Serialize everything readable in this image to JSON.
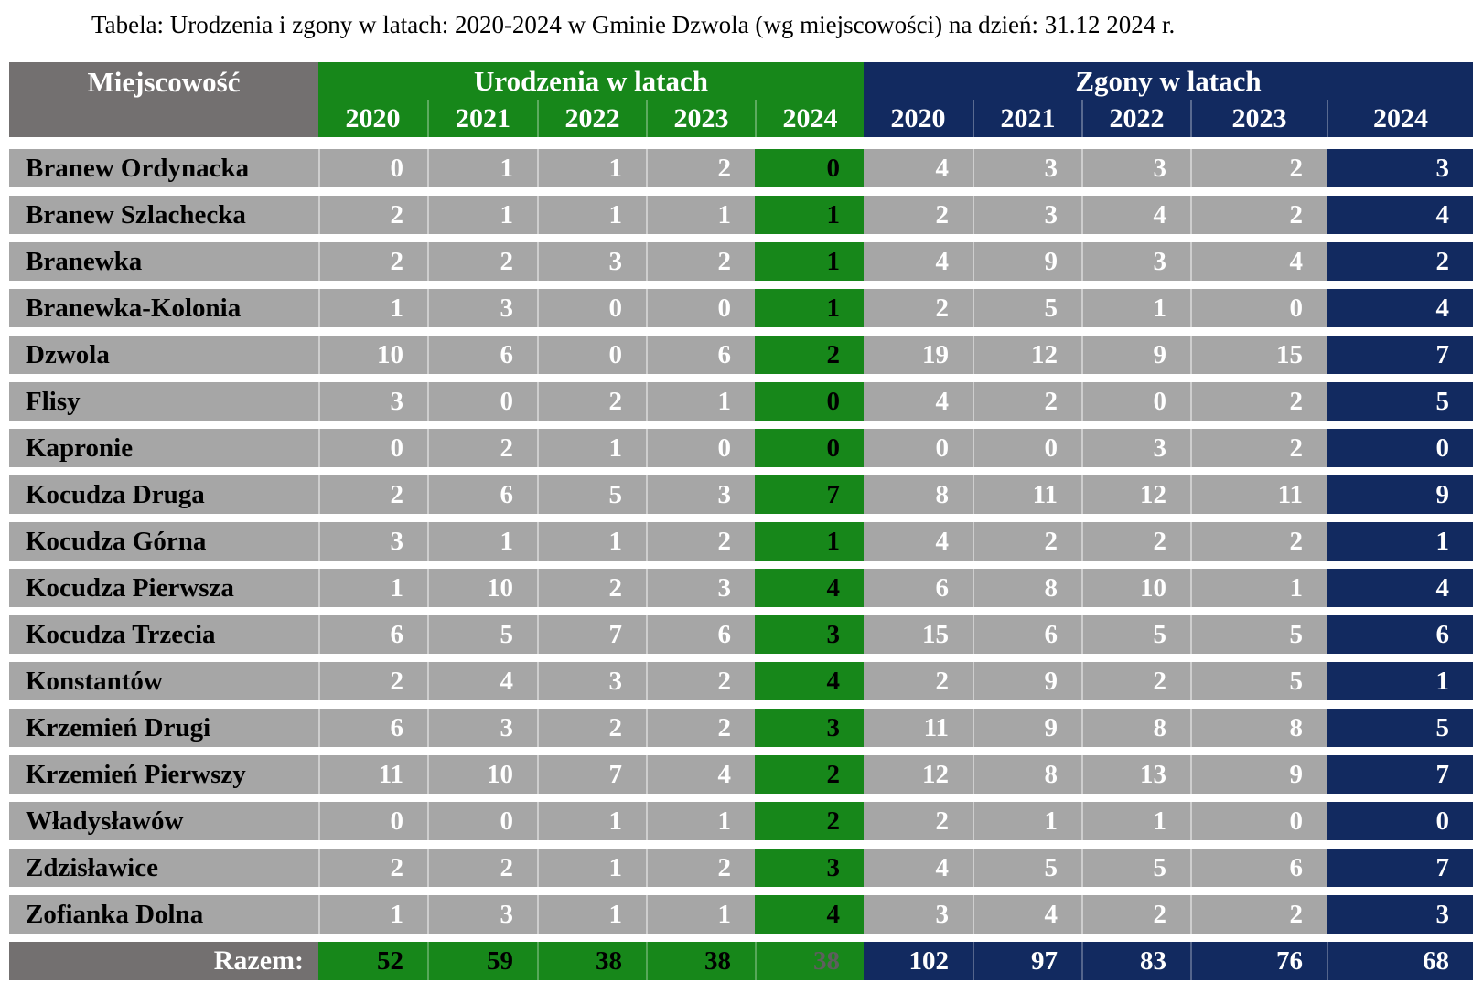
{
  "title": "Tabela: Urodzenia i zgony w latach: 2020-2024 w Gminie Dzwola (wg miejscowości) na dzień: 31.12 2024 r.",
  "header": {
    "locality": "Miejscowość",
    "births_group": "Urodzenia w latach",
    "deaths_group": "Zgony w latach",
    "years": [
      "2020",
      "2021",
      "2022",
      "2023",
      "2024"
    ]
  },
  "rows": [
    {
      "name": "Branew Ordynacka",
      "births": [
        0,
        1,
        1,
        2,
        0
      ],
      "deaths": [
        4,
        3,
        3,
        2,
        3
      ]
    },
    {
      "name": "Branew Szlachecka",
      "births": [
        2,
        1,
        1,
        1,
        1
      ],
      "deaths": [
        2,
        3,
        4,
        2,
        4
      ]
    },
    {
      "name": "Branewka",
      "births": [
        2,
        2,
        3,
        2,
        1
      ],
      "deaths": [
        4,
        9,
        3,
        4,
        2
      ]
    },
    {
      "name": "Branewka-Kolonia",
      "births": [
        1,
        3,
        0,
        0,
        1
      ],
      "deaths": [
        2,
        5,
        1,
        0,
        4
      ]
    },
    {
      "name": "Dzwola",
      "births": [
        10,
        6,
        0,
        6,
        2
      ],
      "deaths": [
        19,
        12,
        9,
        15,
        7
      ]
    },
    {
      "name": "Flisy",
      "births": [
        3,
        0,
        2,
        1,
        0
      ],
      "deaths": [
        4,
        2,
        0,
        2,
        5
      ]
    },
    {
      "name": "Kapronie",
      "births": [
        0,
        2,
        1,
        0,
        0
      ],
      "deaths": [
        0,
        0,
        3,
        2,
        0
      ]
    },
    {
      "name": "Kocudza Druga",
      "births": [
        2,
        6,
        5,
        3,
        7
      ],
      "deaths": [
        8,
        11,
        12,
        11,
        9
      ]
    },
    {
      "name": "Kocudza Górna",
      "births": [
        3,
        1,
        1,
        2,
        1
      ],
      "deaths": [
        4,
        2,
        2,
        2,
        1
      ]
    },
    {
      "name": "Kocudza Pierwsza",
      "births": [
        1,
        10,
        2,
        3,
        4
      ],
      "deaths": [
        6,
        8,
        10,
        1,
        4
      ]
    },
    {
      "name": "Kocudza Trzecia",
      "births": [
        6,
        5,
        7,
        6,
        3
      ],
      "deaths": [
        15,
        6,
        5,
        5,
        6
      ]
    },
    {
      "name": "Konstantów",
      "births": [
        2,
        4,
        3,
        2,
        4
      ],
      "deaths": [
        2,
        9,
        2,
        5,
        1
      ]
    },
    {
      "name": "Krzemień Drugi",
      "births": [
        6,
        3,
        2,
        2,
        3
      ],
      "deaths": [
        11,
        9,
        8,
        8,
        5
      ]
    },
    {
      "name": "Krzemień Pierwszy",
      "births": [
        11,
        10,
        7,
        4,
        2
      ],
      "deaths": [
        12,
        8,
        13,
        9,
        7
      ]
    },
    {
      "name": "Władysławów",
      "births": [
        0,
        0,
        1,
        1,
        2
      ],
      "deaths": [
        2,
        1,
        1,
        0,
        0
      ]
    },
    {
      "name": "Zdzisławice",
      "births": [
        2,
        2,
        1,
        2,
        3
      ],
      "deaths": [
        4,
        5,
        5,
        6,
        7
      ]
    },
    {
      "name": "Zofianka Dolna",
      "births": [
        1,
        3,
        1,
        1,
        4
      ],
      "deaths": [
        3,
        4,
        2,
        2,
        3
      ]
    }
  ],
  "totals": {
    "label": "Razem:",
    "births": [
      52,
      59,
      38,
      38,
      38
    ],
    "deaths": [
      102,
      97,
      83,
      76,
      68
    ]
  },
  "colors": {
    "births_green": "#17871A",
    "deaths_navy": "#122A60",
    "row_gray": "#A6A6A6",
    "header_gray": "#737070",
    "totals_births_2024_text": "#5E5E5E"
  },
  "chart_data": {
    "type": "table",
    "title": "Tabela: Urodzenia i zgony w latach: 2020-2024 w Gminie Dzwola (wg miejscowości) na dzień: 31.12 2024 r.",
    "column_groups": [
      "Urodzenia w latach",
      "Zgony w latach"
    ],
    "columns": [
      "Miejscowość",
      "Urodzenia 2020",
      "Urodzenia 2021",
      "Urodzenia 2022",
      "Urodzenia 2023",
      "Urodzenia 2024",
      "Zgony 2020",
      "Zgony 2021",
      "Zgony 2022",
      "Zgony 2023",
      "Zgony 2024"
    ],
    "rows": [
      [
        "Branew Ordynacka",
        0,
        1,
        1,
        2,
        0,
        4,
        3,
        3,
        2,
        3
      ],
      [
        "Branew Szlachecka",
        2,
        1,
        1,
        1,
        1,
        2,
        3,
        4,
        2,
        4
      ],
      [
        "Branewka",
        2,
        2,
        3,
        2,
        1,
        4,
        9,
        3,
        4,
        2
      ],
      [
        "Branewka-Kolonia",
        1,
        3,
        0,
        0,
        1,
        2,
        5,
        1,
        0,
        4
      ],
      [
        "Dzwola",
        10,
        6,
        0,
        6,
        2,
        19,
        12,
        9,
        15,
        7
      ],
      [
        "Flisy",
        3,
        0,
        2,
        1,
        0,
        4,
        2,
        0,
        2,
        5
      ],
      [
        "Kapronie",
        0,
        2,
        1,
        0,
        0,
        0,
        0,
        3,
        2,
        0
      ],
      [
        "Kocudza Druga",
        2,
        6,
        5,
        3,
        7,
        8,
        11,
        12,
        11,
        9
      ],
      [
        "Kocudza Górna",
        3,
        1,
        1,
        2,
        1,
        4,
        2,
        2,
        2,
        1
      ],
      [
        "Kocudza Pierwsza",
        1,
        10,
        2,
        3,
        4,
        6,
        8,
        10,
        1,
        4
      ],
      [
        "Kocudza Trzecia",
        6,
        5,
        7,
        6,
        3,
        15,
        6,
        5,
        5,
        6
      ],
      [
        "Konstantów",
        2,
        4,
        3,
        2,
        4,
        2,
        9,
        2,
        5,
        1
      ],
      [
        "Krzemień Drugi",
        6,
        3,
        2,
        2,
        3,
        11,
        9,
        8,
        8,
        5
      ],
      [
        "Krzemień Pierwszy",
        11,
        10,
        7,
        4,
        2,
        12,
        8,
        13,
        9,
        7
      ],
      [
        "Władysławów",
        0,
        0,
        1,
        1,
        2,
        2,
        1,
        1,
        0,
        0
      ],
      [
        "Zdzisławice",
        2,
        2,
        1,
        2,
        3,
        4,
        5,
        5,
        6,
        7
      ],
      [
        "Zofianka Dolna",
        1,
        3,
        1,
        1,
        4,
        3,
        4,
        2,
        2,
        3
      ]
    ],
    "totals_row": [
      "Razem:",
      52,
      59,
      38,
      38,
      38,
      102,
      97,
      83,
      76,
      68
    ],
    "layout_hints": {
      "highlighted_columns": [
        "Urodzenia 2024",
        "Zgony 2024"
      ],
      "grid": "row-striped gray with white gaps"
    }
  }
}
